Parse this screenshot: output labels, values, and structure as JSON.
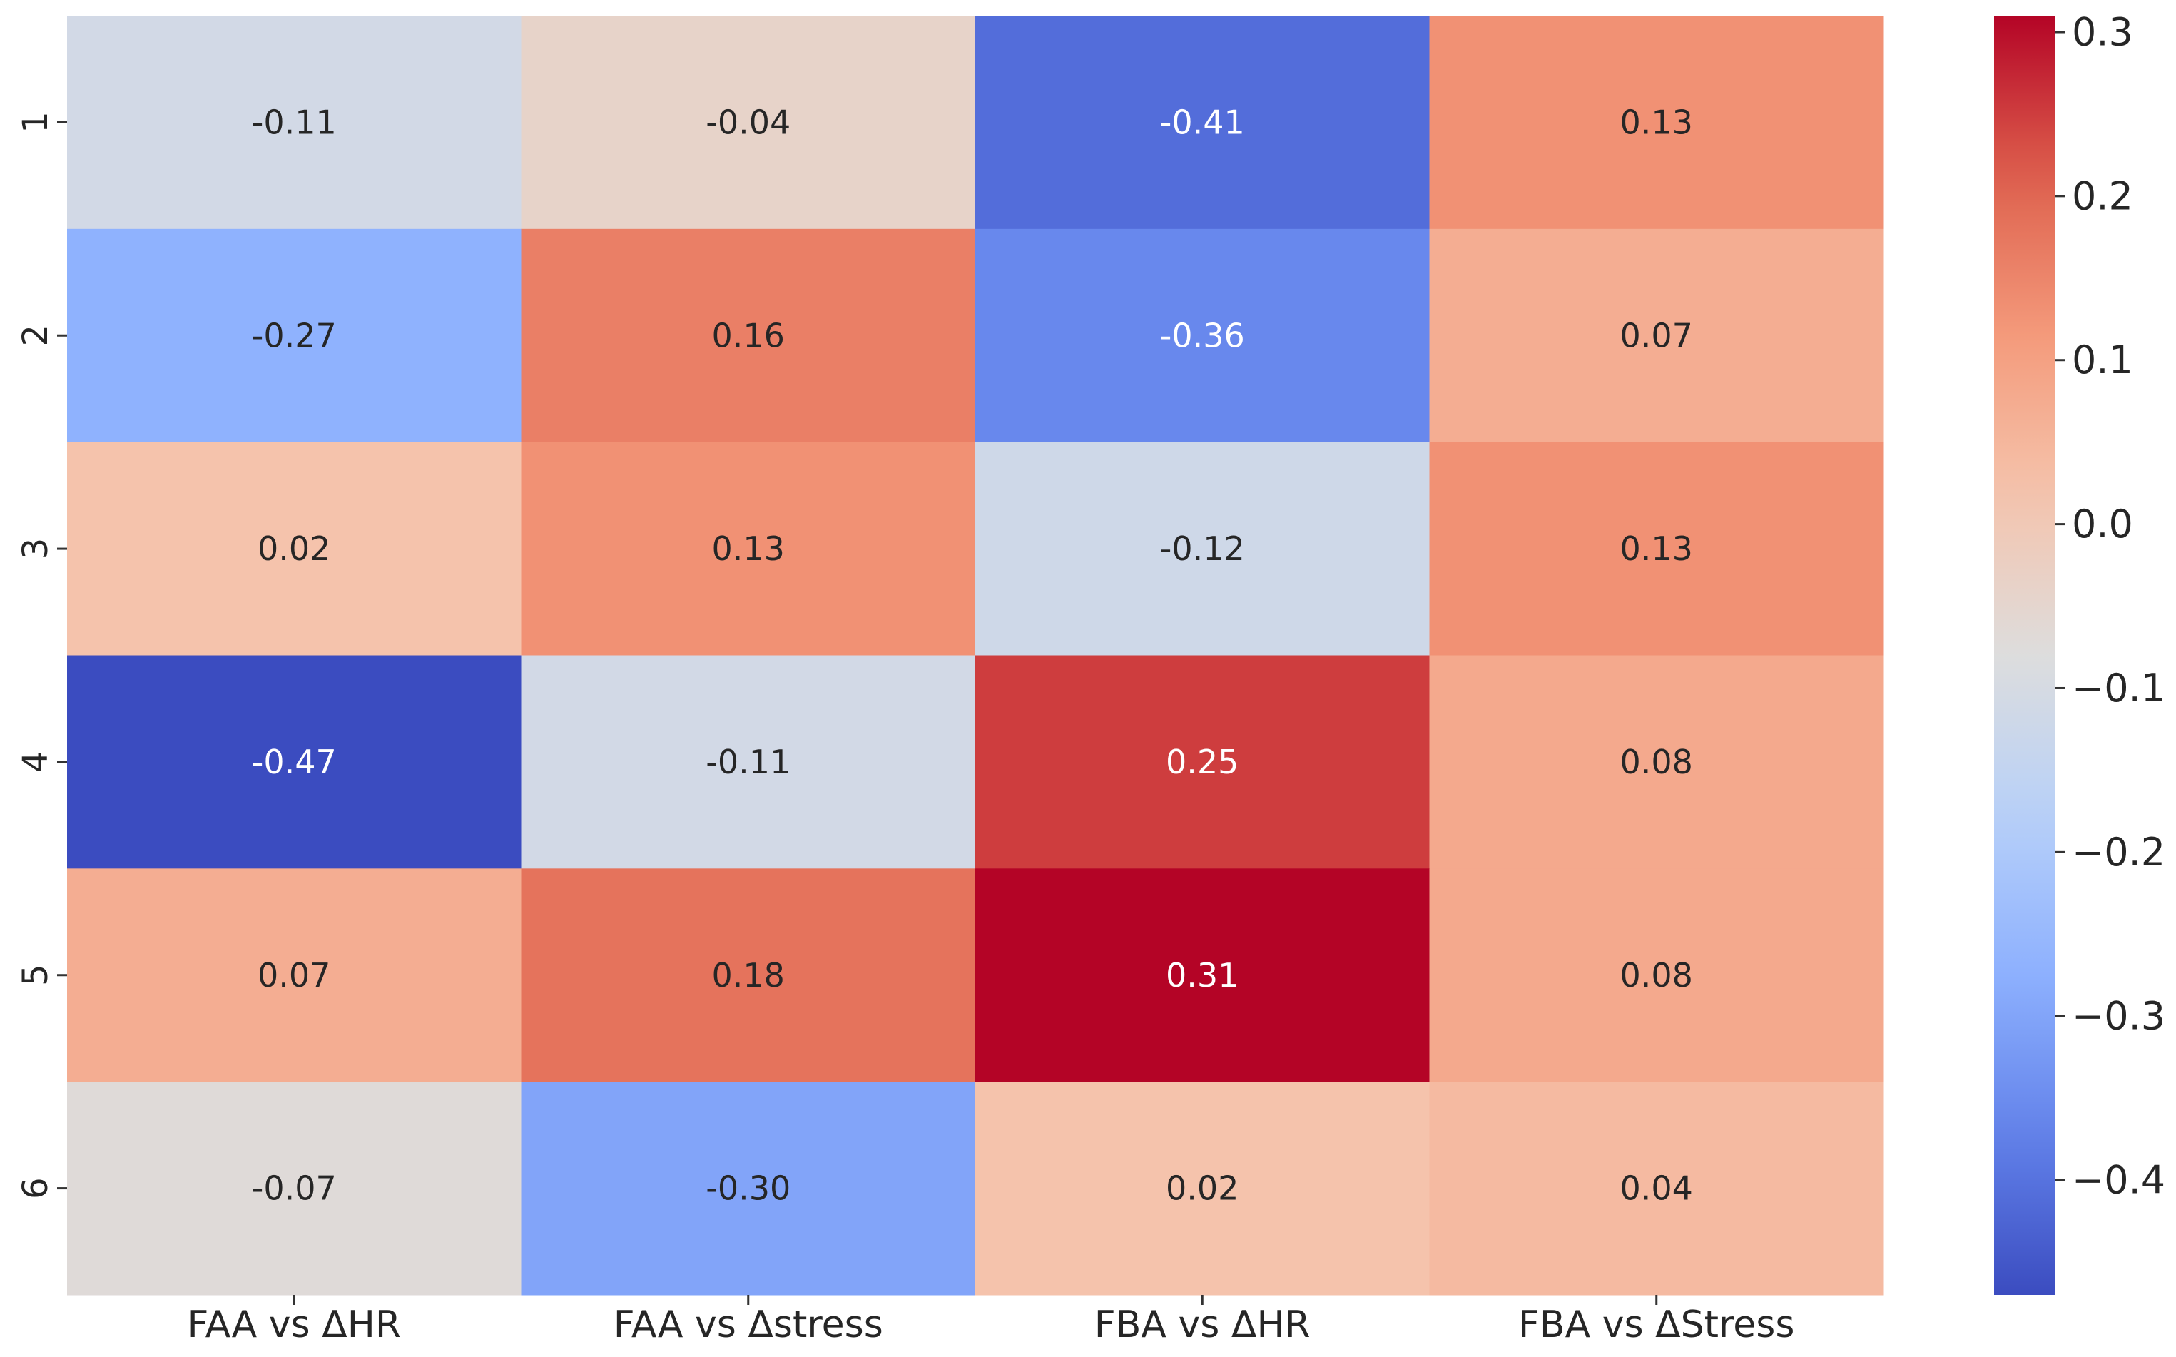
{
  "chart_data": {
    "type": "heatmap",
    "title": "",
    "xlabel": "",
    "ylabel": "",
    "columns": [
      "FAA vs ΔHR",
      "FAA vs Δstress",
      "FBA vs ΔHR",
      "FBA vs ΔStress"
    ],
    "rows": [
      "1",
      "2",
      "3",
      "4",
      "5",
      "6"
    ],
    "values": [
      [
        -0.11,
        -0.04,
        -0.41,
        0.13
      ],
      [
        -0.27,
        0.16,
        -0.36,
        0.07
      ],
      [
        0.02,
        0.13,
        -0.12,
        0.13
      ],
      [
        -0.47,
        -0.11,
        0.25,
        0.08
      ],
      [
        0.07,
        0.18,
        0.31,
        0.08
      ],
      [
        -0.07,
        -0.3,
        0.02,
        0.04
      ]
    ],
    "cell_labels": [
      [
        "-0.11",
        "-0.04",
        "-0.41",
        "0.13"
      ],
      [
        "-0.27",
        "0.16",
        "-0.36",
        "0.07"
      ],
      [
        "0.02",
        "0.13",
        "-0.12",
        "0.13"
      ],
      [
        "-0.47",
        "-0.11",
        "0.25",
        "0.08"
      ],
      [
        "0.07",
        "0.18",
        "0.31",
        "0.08"
      ],
      [
        "-0.07",
        "-0.30",
        "0.02",
        "0.04"
      ]
    ],
    "colormap": "coolwarm",
    "vmin": -0.47,
    "vmax": 0.31,
    "colorbar": {
      "ticks": [
        0.3,
        0.2,
        0.1,
        0.0,
        -0.1,
        -0.2,
        -0.3,
        -0.4
      ],
      "tick_labels": [
        "0.3",
        "0.2",
        "0.1",
        "0.0",
        "−0.1",
        "−0.2",
        "−0.3",
        "−0.4"
      ],
      "placement": "right"
    }
  }
}
